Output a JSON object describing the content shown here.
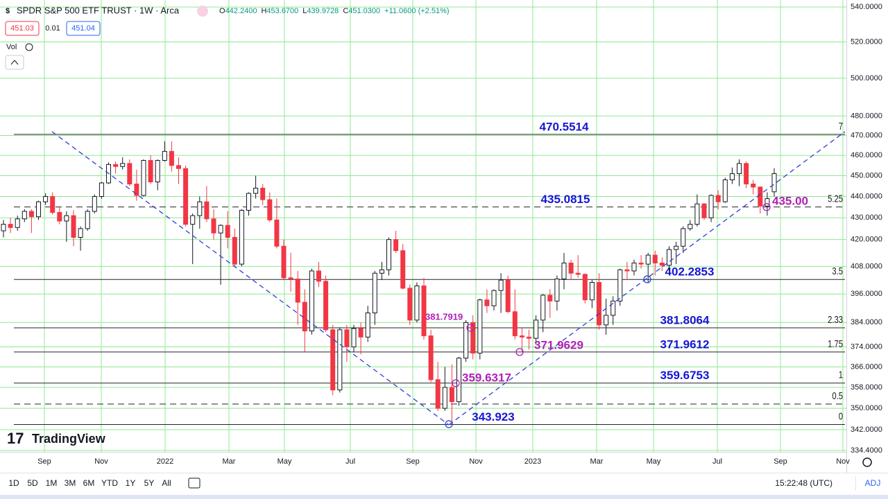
{
  "header": {
    "title": "SPDR S&P 500 ETF TRUST · 1W · Arca",
    "ohlc": [
      {
        "key": "O",
        "value": "442.2400"
      },
      {
        "key": "H",
        "value": "453.6700"
      },
      {
        "key": "L",
        "value": "439.9728"
      },
      {
        "key": "C",
        "value": "451.0300"
      }
    ],
    "change": "+11.0600 (+2.51%)",
    "bid": "451.03",
    "spread": "0.01",
    "ask": "451.04",
    "volume": "Vol",
    "logo": "TradingView"
  },
  "toolbar": {
    "ranges": [
      "1D",
      "5D",
      "1M",
      "3M",
      "6M",
      "YTD",
      "1Y",
      "5Y",
      "All"
    ],
    "clock": "15:22:48 (UTC)",
    "adj": "ADJ"
  },
  "chart_data": {
    "type": "candlestick",
    "log": true,
    "grid": true,
    "up_color": "#ffffff",
    "down_color": "#f23645",
    "ylim": [
      333.9,
      544.1
    ],
    "yticks": [
      {
        "value": 540,
        "label": "540.0000"
      },
      {
        "value": 520,
        "label": "520.0000"
      },
      {
        "value": 500,
        "label": "500.0000"
      },
      {
        "value": 480,
        "label": "480.0000"
      },
      {
        "value": 470,
        "label": "470.0000"
      },
      {
        "value": 460,
        "label": "460.0000"
      },
      {
        "value": 450,
        "label": "450.0000"
      },
      {
        "value": 440,
        "label": "440.0000"
      },
      {
        "value": 430,
        "label": "430.0000"
      },
      {
        "value": 420,
        "label": "420.0000"
      },
      {
        "value": 408,
        "label": "408.0000"
      },
      {
        "value": 396,
        "label": "396.0000"
      },
      {
        "value": 384,
        "label": "384.0000"
      },
      {
        "value": 374,
        "label": "374.0000"
      },
      {
        "value": 366,
        "label": "366.0000"
      },
      {
        "value": 358,
        "label": "358.0000"
      },
      {
        "value": 350,
        "label": "350.0000"
      },
      {
        "value": 342,
        "label": "342.0000"
      },
      {
        "value": 334.4,
        "label": "334.4000"
      }
    ],
    "xlabels": [
      "Sep",
      "Nov",
      "2022",
      "Mar",
      "May",
      "Jul",
      "Sep",
      "Nov",
      "2023",
      "Mar",
      "May",
      "Jul",
      "Sep",
      "Nov"
    ],
    "levels": [
      {
        "ratio": 7,
        "price": 470.5514,
        "dashed": false
      },
      {
        "ratio": 5.25,
        "price": 435.0815,
        "dashed": true
      },
      {
        "ratio": 3.5,
        "price": 402.2853,
        "dashed": false
      },
      {
        "ratio": 2.33,
        "price": 381.8064,
        "dashed": false
      },
      {
        "ratio": 1.75,
        "price": 371.9612,
        "dashed": false
      },
      {
        "ratio": 1,
        "price": 359.6753,
        "dashed": false
      },
      {
        "ratio": 0.5,
        "price": 351.6,
        "dashed": true
      },
      {
        "ratio": 0,
        "price": 343.923,
        "dashed": false
      }
    ],
    "annotations": [
      381.7919,
      371.9629,
      359.6317,
      {
        "value": 435,
        "label": "435.00"
      }
    ],
    "ohlc": [
      [
        424,
        429,
        421,
        427
      ],
      [
        427,
        430,
        423,
        425.5
      ],
      [
        425.5,
        431,
        424,
        429.5
      ],
      [
        429.5,
        434,
        428,
        433
      ],
      [
        433,
        434,
        423,
        430.5
      ],
      [
        430.5,
        438,
        429,
        437.5
      ],
      [
        437.5,
        441.5,
        436,
        440
      ],
      [
        440,
        442,
        431.5,
        432.5
      ],
      [
        432.5,
        435,
        427,
        428.5
      ],
      [
        428.5,
        433,
        419,
        431
      ],
      [
        431,
        433.5,
        417,
        421
      ],
      [
        421,
        426,
        415,
        425
      ],
      [
        425,
        434,
        424,
        433
      ],
      [
        433,
        441,
        432,
        440
      ],
      [
        440,
        447,
        439,
        446.5
      ],
      [
        446.5,
        456.5,
        446,
        455.5
      ],
      [
        455.5,
        457,
        451,
        454.5
      ],
      [
        454.5,
        459,
        453,
        456
      ],
      [
        456,
        458,
        445,
        446
      ],
      [
        446,
        453,
        438,
        440.5
      ],
      [
        440.5,
        458,
        440,
        457.5
      ],
      [
        457.5,
        460,
        446,
        447
      ],
      [
        447,
        458,
        443,
        457.5
      ],
      [
        457.5,
        467,
        457,
        462
      ],
      [
        462,
        467,
        452,
        455
      ],
      [
        455,
        459,
        446,
        453.5
      ],
      [
        453.5,
        455,
        426,
        427
      ],
      [
        427,
        432,
        409,
        431
      ],
      [
        431,
        440,
        425,
        437.5
      ],
      [
        437.5,
        445,
        428,
        429.5
      ],
      [
        429.5,
        434,
        420,
        423
      ],
      [
        423,
        427,
        400,
        426.5
      ],
      [
        426.5,
        433,
        416,
        421
      ],
      [
        421,
        425,
        408,
        409
      ],
      [
        409,
        434,
        408,
        433.5
      ],
      [
        433.5,
        442,
        431,
        441.5
      ],
      [
        441.5,
        450,
        439,
        444
      ],
      [
        444,
        446,
        436,
        438.5
      ],
      [
        438.5,
        442,
        428,
        429
      ],
      [
        429,
        439,
        416,
        417
      ],
      [
        417,
        420,
        402,
        403
      ],
      [
        403,
        414,
        397,
        402.5
      ],
      [
        402.5,
        406,
        383,
        392.5
      ],
      [
        392.5,
        398,
        372,
        380.5
      ],
      [
        380.5,
        407,
        379,
        406
      ],
      [
        406,
        410,
        399,
        401.5
      ],
      [
        401.5,
        404,
        380,
        381
      ],
      [
        381,
        383,
        355,
        357
      ],
      [
        357,
        382,
        356,
        381
      ],
      [
        381,
        383,
        368,
        374
      ],
      [
        374,
        383,
        372,
        381.5
      ],
      [
        381.5,
        384,
        371,
        378
      ],
      [
        378,
        391,
        376,
        388
      ],
      [
        388,
        406,
        383,
        405
      ],
      [
        405,
        410,
        402,
        406.5
      ],
      [
        406.5,
        421,
        404,
        420
      ],
      [
        420,
        424,
        414,
        415
      ],
      [
        415,
        418,
        398,
        398.5
      ],
      [
        398.5,
        400,
        383,
        385
      ],
      [
        385,
        401,
        384,
        399.5
      ],
      [
        399.5,
        403,
        377,
        378.5
      ],
      [
        378.5,
        381,
        360,
        361
      ],
      [
        361,
        368,
        349,
        350
      ],
      [
        350,
        366,
        349,
        358
      ],
      [
        358,
        367,
        343.923,
        352.5
      ],
      [
        352.5,
        370,
        351,
        369.5
      ],
      [
        369.5,
        385,
        368,
        384
      ],
      [
        384,
        387,
        369,
        371.5
      ],
      [
        371.5,
        394,
        369,
        393.5
      ],
      [
        393.5,
        398,
        388,
        391
      ],
      [
        391,
        398,
        389,
        397.5
      ],
      [
        397.5,
        405,
        388,
        402
      ],
      [
        402,
        404,
        388,
        388.5
      ],
      [
        388.5,
        398,
        377,
        378.5
      ],
      [
        378.5,
        382,
        372,
        378
      ],
      [
        378,
        381,
        373,
        377.5
      ],
      [
        377.5,
        387,
        375,
        385
      ],
      [
        385,
        396,
        380,
        395.5
      ],
      [
        395.5,
        398,
        386,
        393
      ],
      [
        393,
        404,
        389,
        402.5
      ],
      [
        402.5,
        414,
        398,
        409.5
      ],
      [
        409.5,
        411,
        402,
        405
      ],
      [
        405,
        413,
        403,
        404.5
      ],
      [
        404.5,
        405,
        392,
        393.5
      ],
      [
        393.5,
        402,
        390,
        401
      ],
      [
        401,
        405,
        381,
        383
      ],
      [
        383,
        394,
        379,
        387
      ],
      [
        387,
        395,
        383,
        393
      ],
      [
        393,
        407,
        391,
        406.5
      ],
      [
        406.5,
        410,
        402,
        406
      ],
      [
        406,
        411,
        404,
        409.5
      ],
      [
        409.5,
        413,
        407,
        409
      ],
      [
        409,
        414,
        401,
        413
      ],
      [
        413,
        415,
        404,
        409.5
      ],
      [
        409.5,
        412,
        406,
        408.5
      ],
      [
        408.5,
        417,
        406,
        415.5
      ],
      [
        415.5,
        419,
        409,
        417
      ],
      [
        417,
        426,
        414,
        425
      ],
      [
        425,
        429,
        424,
        427
      ],
      [
        427,
        441,
        426,
        436.5
      ],
      [
        436.5,
        437,
        429,
        430
      ],
      [
        430,
        441,
        428,
        440.5
      ],
      [
        440.5,
        443,
        434,
        437.5
      ],
      [
        437.5,
        449,
        437,
        448
      ],
      [
        448,
        454,
        446,
        451
      ],
      [
        451,
        458,
        445,
        456
      ],
      [
        456,
        457,
        444,
        446
      ],
      [
        446,
        448,
        441,
        444.5
      ],
      [
        444.5,
        445,
        432,
        435.5
      ],
      [
        435.5,
        442,
        431,
        439
      ],
      [
        442.24,
        453.67,
        439.9728,
        451.03
      ]
    ]
  }
}
